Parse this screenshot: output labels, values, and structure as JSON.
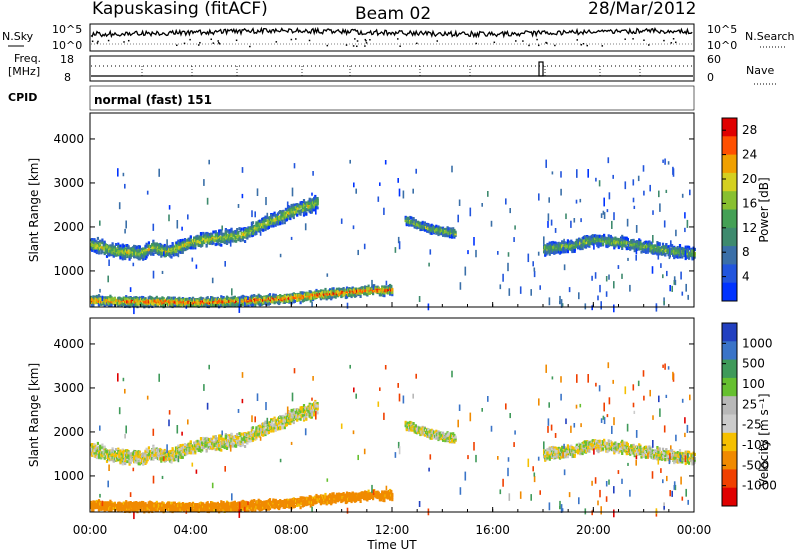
{
  "header": {
    "station": "Kapuskasing (fitACF)",
    "beam": "Beam 02",
    "date": "28/Mar/2012"
  },
  "top_panels": {
    "nsky_label": "N.Sky",
    "nsky_ticks": [
      "10^5",
      "10^0"
    ],
    "nsearch_label": "N.Search",
    "nsearch_ticks": [
      "10^5",
      "10^0"
    ],
    "freq_label": "Freq.",
    "freq_unit": "[MHz]",
    "freq_ticks": [
      "18",
      "8"
    ],
    "nave_label": "Nave",
    "nave_ticks": [
      "60",
      "0"
    ],
    "cpid_label": "CPID",
    "cpid_value": "normal (fast) 151"
  },
  "colors": {
    "power": [
      "#0033ff",
      "#2255dd",
      "#3a6fa8",
      "#3e8a6e",
      "#44a055",
      "#88c030",
      "#d4d020",
      "#f0a000",
      "#ff5000",
      "#e00000"
    ],
    "velocity": [
      "#2240c0",
      "#3a74c8",
      "#3f9a5a",
      "#66c030",
      "#b8b8b8",
      "#cccccc",
      "#f5c000",
      "#f08a00",
      "#f04000",
      "#e00000"
    ]
  },
  "chart_data": [
    {
      "type": "heatmap",
      "name": "power",
      "xlabel": "Time UT",
      "ylabel": "Slant Range [km]",
      "x_ticks": [
        "00:00",
        "04:00",
        "08:00",
        "12:00",
        "16:00",
        "20:00",
        "00:00"
      ],
      "y_ticks": [
        1000,
        2000,
        3000,
        4000
      ],
      "ylim": [
        180,
        4590
      ],
      "xlim_hours": [
        0,
        24
      ],
      "colorbar": {
        "label": "Power [dB]",
        "ticks": [
          4,
          8,
          12,
          16,
          20,
          24,
          28
        ],
        "range": [
          0,
          30
        ]
      },
      "echo_bands": [
        {
          "t": [
            0.0,
            1.0,
            2.0,
            2.5,
            3.0,
            4.0,
            5.0,
            6.0,
            6.5,
            7.0,
            7.5,
            8.0,
            8.5,
            9.0
          ],
          "range_km": [
            1600,
            1450,
            1400,
            1550,
            1420,
            1650,
            1750,
            1800,
            1950,
            2100,
            2200,
            2350,
            2450,
            2550
          ],
          "width_km": 260,
          "power_db": 14
        },
        {
          "t": [
            0.0,
            2.0,
            4.0,
            6.0,
            8.0,
            9.0,
            10.0,
            11.0,
            12.0
          ],
          "range_km": [
            320,
            300,
            280,
            310,
            380,
            450,
            500,
            550,
            560
          ],
          "width_km": 180,
          "power_db": 20
        },
        {
          "t": [
            12.5,
            13.0,
            13.5,
            14.0,
            14.5
          ],
          "range_km": [
            2150,
            2050,
            1950,
            1900,
            1850
          ],
          "width_km": 160,
          "power_db": 12
        },
        {
          "t": [
            18.0,
            19.0,
            20.0,
            21.0,
            22.0,
            23.0,
            24.0
          ],
          "range_km": [
            1500,
            1550,
            1700,
            1650,
            1550,
            1450,
            1400
          ],
          "width_km": 220,
          "power_db": 12
        }
      ]
    },
    {
      "type": "heatmap",
      "name": "velocity",
      "xlabel": "Time UT",
      "ylabel": "Slant Range [km]",
      "x_ticks": [
        "00:00",
        "04:00",
        "08:00",
        "12:00",
        "16:00",
        "20:00",
        "00:00"
      ],
      "y_ticks": [
        1000,
        2000,
        3000,
        4000
      ],
      "ylim": [
        180,
        4590
      ],
      "xlim_hours": [
        0,
        24
      ],
      "colorbar": {
        "label": "Velocity [m s⁻¹]",
        "ticks": [
          "1000",
          "500",
          "100",
          "25",
          "-25",
          "-100",
          "-500",
          "-1000"
        ],
        "range": [
          -1000,
          1000
        ]
      },
      "echo_bands": [
        {
          "t": [
            0.0,
            1.0,
            2.0,
            2.5,
            3.0,
            4.0,
            5.0,
            6.0,
            6.5,
            7.0,
            7.5,
            8.0,
            8.5,
            9.0
          ],
          "range_km": [
            1600,
            1450,
            1400,
            1550,
            1420,
            1650,
            1750,
            1800,
            1950,
            2100,
            2200,
            2350,
            2450,
            2550
          ],
          "width_km": 260,
          "velocity": 0
        },
        {
          "t": [
            0.0,
            2.0,
            4.0,
            6.0,
            8.0,
            9.0,
            10.0,
            11.0,
            12.0
          ],
          "range_km": [
            320,
            300,
            280,
            310,
            380,
            450,
            500,
            550,
            560
          ],
          "width_km": 180,
          "velocity": -150
        },
        {
          "t": [
            12.5,
            13.0,
            13.5,
            14.0,
            14.5
          ],
          "range_km": [
            2150,
            2050,
            1950,
            1900,
            1850
          ],
          "width_km": 160,
          "velocity": 0
        },
        {
          "t": [
            18.0,
            19.0,
            20.0,
            21.0,
            22.0,
            23.0,
            24.0
          ],
          "range_km": [
            1500,
            1550,
            1700,
            1650,
            1550,
            1450,
            1400
          ],
          "width_km": 220,
          "velocity": 0
        }
      ]
    }
  ]
}
